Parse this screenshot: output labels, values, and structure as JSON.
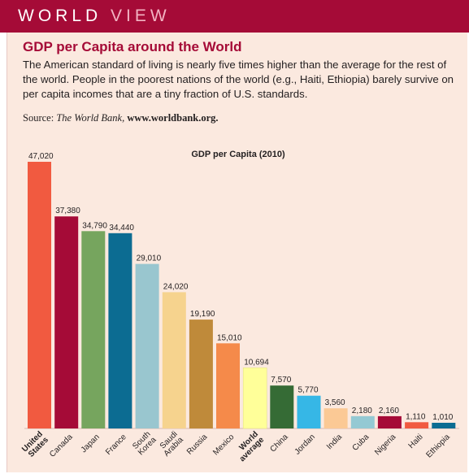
{
  "banner": {
    "word1": "WORLD",
    "word2": "VIEW"
  },
  "heading": "GDP per Capita around the World",
  "body": "The American standard of living is nearly five times higher than the average for the rest of the world. People in the poorest nations of the world (e.g., Haiti, Ethiopia) barely survive on per capita incomes that are a tiny fraction of U.S. standards.",
  "source": {
    "label": "Source:",
    "publisher": "The World Bank,",
    "url": "www.worldbank.org."
  },
  "colors": {
    "banner": "#a50b37",
    "panel": "#fbe9df"
  },
  "chart_data": {
    "type": "bar",
    "title": "GDP per Capita (2010)",
    "categories": [
      "United States",
      "Canada",
      "Japan",
      "France",
      "South Korea",
      "Saudi Arabia",
      "Russia",
      "Mexico",
      "World average",
      "China",
      "Jordan",
      "India",
      "Cuba",
      "Nigeria",
      "Haiti",
      "Ethiopia"
    ],
    "values": [
      47020,
      37380,
      34790,
      34440,
      29010,
      24020,
      19190,
      15010,
      10694,
      7570,
      5770,
      3560,
      2180,
      2160,
      1110,
      1010
    ],
    "value_labels": [
      "47,020",
      "37,380",
      "34,790",
      "34,440",
      "29,010",
      "24,020",
      "19,190",
      "15,010",
      "10,694",
      "7,570",
      "5,770",
      "3,560",
      "2,180",
      "2,160",
      "1,110",
      "1,010"
    ],
    "tick_labels": [
      [
        "United",
        "States"
      ],
      [
        "Canada"
      ],
      [
        "Japan"
      ],
      [
        "France"
      ],
      [
        "South",
        "Korea"
      ],
      [
        "Saudi",
        "Arabia"
      ],
      [
        "Russia"
      ],
      [
        "Mexico"
      ],
      [
        "World",
        "average"
      ],
      [
        "China"
      ],
      [
        "Jordan"
      ],
      [
        "India"
      ],
      [
        "Cuba"
      ],
      [
        "Nigeria"
      ],
      [
        "Haiti"
      ],
      [
        "Ethiopia"
      ]
    ],
    "bold_categories": [
      "United States",
      "World average"
    ],
    "bar_colors": [
      "#f15a40",
      "#a50b37",
      "#76a55e",
      "#0c6c92",
      "#99c6cf",
      "#f6d38e",
      "#bf8a3a",
      "#f58a4a",
      "#ffff99",
      "#356b35",
      "#36b7e6",
      "#fbc995",
      "#94c9d3",
      "#a50b37",
      "#f15a40",
      "#0c6c92"
    ],
    "ylim": [
      0,
      47020
    ],
    "grid": false,
    "legend": "none"
  }
}
